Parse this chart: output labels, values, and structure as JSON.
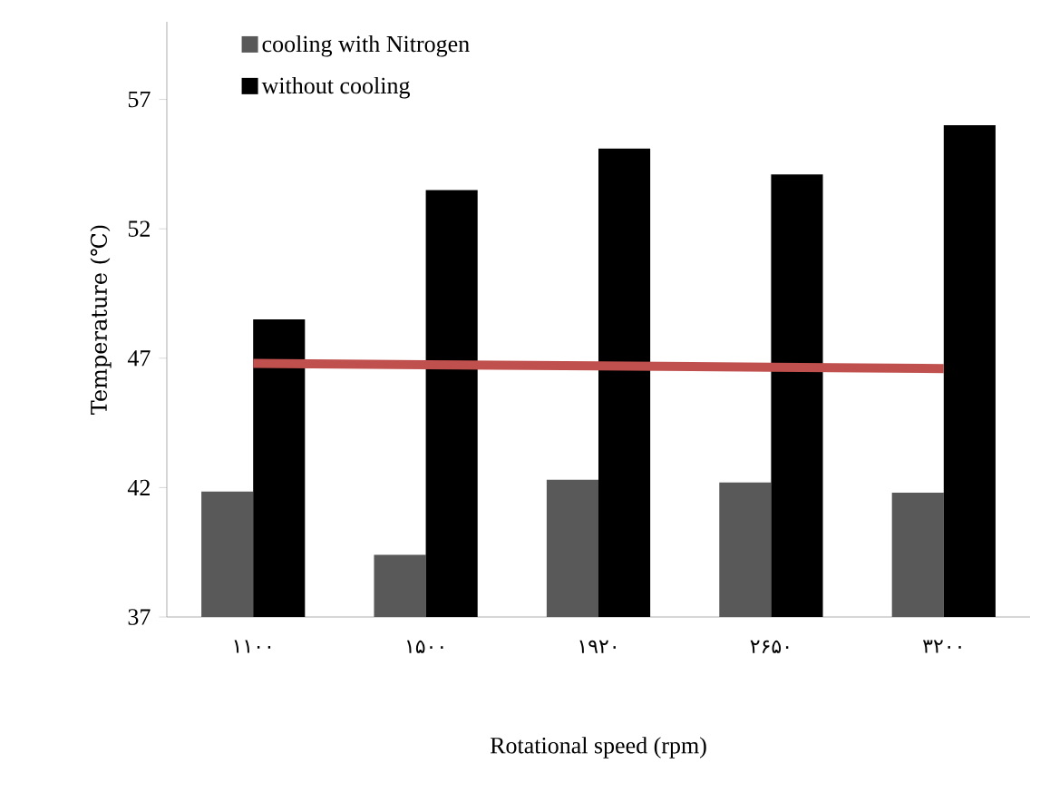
{
  "chart_data": {
    "type": "bar",
    "xlabel": "Rotational speed (rpm)",
    "ylabel": "Temperature (℃)",
    "categories": [
      "۱۱۰۰",
      "۱۵۰۰",
      "۱۹۲۰",
      "۲۶۵۰",
      "۳۲۰۰"
    ],
    "series": [
      {
        "name": "cooling with Nitrogen",
        "color": "#595959",
        "values": [
          41.85,
          39.4,
          42.3,
          42.2,
          41.8
        ]
      },
      {
        "name": "without cooling",
        "color": "#000000",
        "values": [
          48.5,
          53.5,
          55.1,
          54.1,
          56.0
        ]
      },
      {
        "type": "line",
        "color": "#c0504d",
        "values": [
          46.8,
          46.75,
          46.7,
          46.65,
          46.6
        ]
      }
    ],
    "ylim": [
      37,
      60
    ],
    "yticks": [
      37,
      42,
      47,
      52,
      57
    ],
    "legend": "top left",
    "grid": false
  }
}
